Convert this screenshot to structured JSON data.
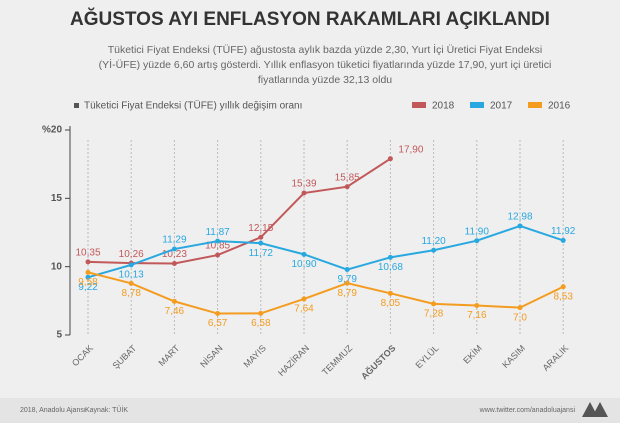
{
  "chart_data": {
    "type": "line",
    "title": "AĞUSTOS AYI ENFLASYON RAKAMLARI AÇIKLANDI",
    "subtitle": [
      "Tüketici Fiyat Endeksi (TÜFE) ağustosta aylık bazda yüzde 2,30, Yurt İçi Üretici Fiyat Endeksi",
      "(Yİ-ÜFE) yüzde 6,60 artış gösterdi. Yıllık enflasyon tüketici fiyatlarında yüzde 17,90, yurt içi üretici",
      "fiyatlarında yüzde 32,13 oldu"
    ],
    "note": "Tüketici Fiyat Endeksi (TÜFE) yıllık değişim oranı",
    "categories": [
      "OCAK",
      "ŞUBAT",
      "MART",
      "NİSAN",
      "MAYIS",
      "HAZİRAN",
      "TEMMUZ",
      "AĞUSTOS",
      "EYLÜL",
      "EKİM",
      "KASIM",
      "ARALIK"
    ],
    "series": [
      {
        "name": "2018",
        "color": "#c1585a",
        "values": [
          10.35,
          10.26,
          10.23,
          10.85,
          12.15,
          15.39,
          15.85,
          17.9,
          null,
          null,
          null,
          null
        ],
        "value_labels": [
          "10,35",
          "10,26",
          "10,23",
          "10,85",
          "12,15",
          "15,39",
          "15,85",
          "17,90",
          null,
          null,
          null,
          null
        ]
      },
      {
        "name": "2017",
        "color": "#29a8e0",
        "values": [
          9.22,
          10.13,
          11.29,
          11.87,
          11.72,
          10.9,
          9.79,
          10.68,
          11.2,
          11.9,
          12.98,
          11.92
        ],
        "value_labels": [
          "9,22",
          "10,13",
          "11,29",
          "11,87",
          "11,72",
          "10,90",
          "9,79",
          "10,68",
          "11,20",
          "11,90",
          "12,98",
          "11,92"
        ]
      },
      {
        "name": "2016",
        "color": "#f39c1f",
        "values": [
          9.58,
          8.78,
          7.46,
          6.57,
          6.58,
          7.64,
          8.79,
          8.05,
          7.28,
          7.16,
          7.0,
          8.53
        ],
        "value_labels": [
          "9,58",
          "8,78",
          "7,46",
          "6,57",
          "6,58",
          "7,64",
          "8,79",
          "8,05",
          "7,28",
          "7,16",
          "7,0",
          "8,53"
        ]
      }
    ],
    "ylim": [
      5,
      20
    ],
    "yticks": [
      5,
      10,
      15,
      {
        "value": 20,
        "label": "%20"
      }
    ],
    "footer": {
      "copyright": "2018, Anadolu Ajansı",
      "source": "Kaynak: TÜİK",
      "url": "www.twitter.com/anadoluajansi"
    }
  }
}
